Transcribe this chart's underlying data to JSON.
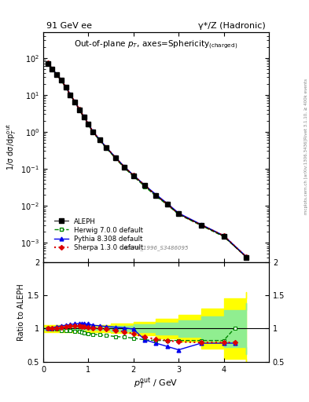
{
  "title_left": "91 GeV ee",
  "title_right": "γ*/Z (Hadronic)",
  "plot_title": "Out-of-plane $p_T$, axes=Sphericity$_{\\mathrm{(charged)}}$",
  "xlabel": "$p_T^{\\mathrm{out}}$ / GeV",
  "ylabel_main": "1/σ dσ/dp$_T^{\\mathrm{out}}$",
  "ylabel_ratio": "Ratio to ALEPH",
  "watermark": "ALEPH_1996_S3486095",
  "rivet_label": "Rivet 3.1.10, ≥ 400k events",
  "arxiv_label": "mcplots.cern.ch [arXiv:1306.3436]",
  "aleph_x": [
    0.1,
    0.2,
    0.3,
    0.4,
    0.5,
    0.6,
    0.7,
    0.8,
    0.9,
    1.0,
    1.1,
    1.25,
    1.4,
    1.6,
    1.8,
    2.0,
    2.25,
    2.5,
    2.75,
    3.0,
    3.5,
    4.0,
    4.5
  ],
  "aleph_y": [
    72.0,
    50.0,
    35.0,
    25.0,
    16.0,
    10.0,
    6.5,
    4.0,
    2.5,
    1.6,
    1.0,
    0.6,
    0.37,
    0.2,
    0.11,
    0.065,
    0.035,
    0.019,
    0.011,
    0.006,
    0.003,
    0.0015,
    0.0004
  ],
  "herwig_x": [
    0.1,
    0.2,
    0.3,
    0.4,
    0.5,
    0.6,
    0.7,
    0.8,
    0.9,
    1.0,
    1.1,
    1.25,
    1.4,
    1.6,
    1.8,
    2.0,
    2.25,
    2.5,
    2.75,
    3.0,
    3.5,
    4.0,
    4.5
  ],
  "herwig_y": [
    71.0,
    49.5,
    35.0,
    24.5,
    15.5,
    9.8,
    6.3,
    3.9,
    2.45,
    1.55,
    0.98,
    0.58,
    0.36,
    0.19,
    0.105,
    0.062,
    0.033,
    0.018,
    0.0105,
    0.0058,
    0.0029,
    0.00145,
    0.00041
  ],
  "pythia_x": [
    0.1,
    0.2,
    0.3,
    0.4,
    0.5,
    0.6,
    0.7,
    0.8,
    0.9,
    1.0,
    1.1,
    1.25,
    1.4,
    1.6,
    1.8,
    2.0,
    2.25,
    2.5,
    2.75,
    3.0,
    3.5,
    4.0,
    4.5
  ],
  "pythia_y": [
    73.0,
    51.0,
    36.0,
    25.5,
    16.5,
    10.2,
    6.6,
    4.1,
    2.6,
    1.65,
    1.03,
    0.62,
    0.38,
    0.205,
    0.113,
    0.067,
    0.036,
    0.02,
    0.0115,
    0.0063,
    0.0031,
    0.00155,
    0.00042
  ],
  "sherpa_x": [
    0.1,
    0.2,
    0.3,
    0.4,
    0.5,
    0.6,
    0.7,
    0.8,
    0.9,
    1.0,
    1.1,
    1.25,
    1.4,
    1.6,
    1.8,
    2.0,
    2.25,
    2.5,
    2.75,
    3.0,
    3.5,
    4.0,
    4.5
  ],
  "sherpa_y": [
    73.0,
    50.5,
    35.5,
    25.0,
    16.2,
    10.1,
    6.55,
    4.05,
    2.55,
    1.62,
    1.01,
    0.61,
    0.375,
    0.2,
    0.111,
    0.066,
    0.0355,
    0.019,
    0.011,
    0.006,
    0.003,
    0.00153,
    0.00041
  ],
  "ratio_herwig_x": [
    0.1,
    0.2,
    0.3,
    0.4,
    0.5,
    0.6,
    0.7,
    0.8,
    0.85,
    0.9,
    1.0,
    1.1,
    1.25,
    1.4,
    1.6,
    1.8,
    2.0,
    2.25,
    2.5,
    2.75,
    3.0,
    3.5,
    4.0,
    4.25
  ],
  "ratio_herwig_y": [
    1.0,
    0.99,
    0.99,
    0.97,
    0.97,
    0.97,
    0.96,
    0.955,
    0.945,
    0.935,
    0.925,
    0.915,
    0.905,
    0.895,
    0.88,
    0.87,
    0.855,
    0.83,
    0.82,
    0.82,
    0.82,
    0.82,
    0.82,
    1.01
  ],
  "ratio_pythia_x": [
    0.1,
    0.2,
    0.3,
    0.4,
    0.5,
    0.6,
    0.7,
    0.8,
    0.85,
    0.9,
    1.0,
    1.1,
    1.25,
    1.4,
    1.6,
    1.8,
    2.0,
    2.25,
    2.5,
    2.75,
    3.0,
    3.5,
    4.0,
    4.25
  ],
  "ratio_pythia_y": [
    1.0,
    1.01,
    1.03,
    1.04,
    1.05,
    1.06,
    1.07,
    1.075,
    1.075,
    1.07,
    1.07,
    1.05,
    1.04,
    1.03,
    1.02,
    1.01,
    0.99,
    0.83,
    0.78,
    0.73,
    0.68,
    0.78,
    0.78,
    0.78
  ],
  "ratio_sherpa_x": [
    0.1,
    0.2,
    0.3,
    0.4,
    0.5,
    0.6,
    0.7,
    0.8,
    0.85,
    0.9,
    1.0,
    1.1,
    1.25,
    1.4,
    1.6,
    1.8,
    2.0,
    2.25,
    2.5,
    2.75,
    3.0,
    3.5,
    4.0,
    4.25
  ],
  "ratio_sherpa_y": [
    1.0,
    1.0,
    1.01,
    1.02,
    1.03,
    1.04,
    1.04,
    1.04,
    1.03,
    1.03,
    1.02,
    1.01,
    1.0,
    0.99,
    0.97,
    0.95,
    0.92,
    0.87,
    0.84,
    0.82,
    0.8,
    0.79,
    0.79,
    0.79
  ],
  "band_x_edges": [
    0.0,
    0.5,
    1.0,
    1.5,
    2.0,
    2.5,
    3.0,
    3.5,
    4.0,
    4.5
  ],
  "band_yellow_upper": [
    1.05,
    1.05,
    1.05,
    1.07,
    1.1,
    1.15,
    1.2,
    1.3,
    1.45,
    1.55
  ],
  "band_yellow_lower": [
    0.95,
    0.95,
    0.95,
    0.93,
    0.9,
    0.85,
    0.8,
    0.7,
    0.55,
    0.45
  ],
  "band_green_upper": [
    1.02,
    1.02,
    1.02,
    1.04,
    1.06,
    1.09,
    1.12,
    1.18,
    1.28,
    1.38
  ],
  "band_green_lower": [
    0.98,
    0.98,
    0.98,
    0.96,
    0.94,
    0.91,
    0.88,
    0.82,
    0.72,
    0.62
  ],
  "aleph_color": "#000000",
  "herwig_color": "#008800",
  "pythia_color": "#0000ee",
  "sherpa_color": "#dd0000",
  "xlim": [
    0,
    5.0
  ],
  "ylim_main": [
    0.0003,
    500
  ],
  "ylim_ratio": [
    0.5,
    2.0
  ]
}
